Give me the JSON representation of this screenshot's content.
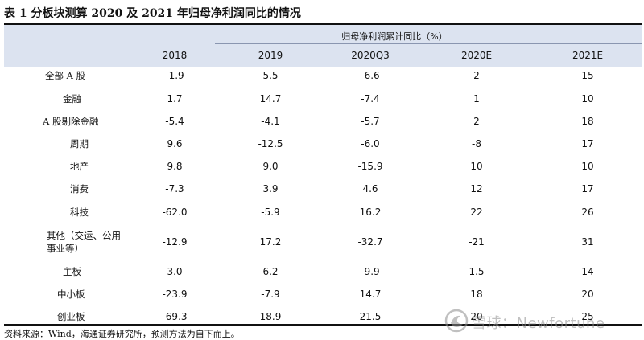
{
  "title": "表 1 分板块测算 2020 及 2021 年归母净利润同比的情况",
  "table": {
    "group_header": "归母净利润累计同比（%）",
    "columns": [
      "2018",
      "2019",
      "2020Q3",
      "2020E",
      "2021E"
    ],
    "rows": [
      {
        "label": "全部 A 股",
        "values": [
          "-1.9",
          "5.5",
          "-6.6",
          "2",
          "15"
        ]
      },
      {
        "label": "金融",
        "values": [
          "1.7",
          "14.7",
          "-7.4",
          "1",
          "10"
        ]
      },
      {
        "label": "A 股剔除金融",
        "values": [
          "-5.4",
          "-4.1",
          "-5.7",
          "2",
          "18"
        ]
      },
      {
        "label": "周期",
        "values": [
          "9.6",
          "-12.5",
          "-6.0",
          "-8",
          "17"
        ]
      },
      {
        "label": "地产",
        "values": [
          "9.8",
          "9.0",
          "-15.9",
          "10",
          "10"
        ]
      },
      {
        "label": "消费",
        "values": [
          "-7.3",
          "3.9",
          "4.6",
          "12",
          "17"
        ]
      },
      {
        "label": "科技",
        "values": [
          "-62.0",
          "-5.9",
          "16.2",
          "22",
          "26"
        ]
      },
      {
        "label": "其他（交运、公用",
        "label2": "事业等）",
        "values": [
          "-12.9",
          "17.2",
          "-32.7",
          "-21",
          "31"
        ]
      },
      {
        "label": "主板",
        "values": [
          "3.0",
          "6.2",
          "-9.9",
          "1.5",
          "14"
        ]
      },
      {
        "label": "中小板",
        "values": [
          "-23.9",
          "-7.9",
          "14.7",
          "18",
          "20"
        ]
      },
      {
        "label": "创业板",
        "values": [
          "-69.3",
          "18.9",
          "21.5",
          "20",
          "25"
        ]
      }
    ]
  },
  "source": "资料来源：Wind，海通证券研究所，预测方法为自下而上。",
  "watermark": {
    "text": "雪球：Newfortune",
    "icon": "snowball-logo-icon"
  }
}
